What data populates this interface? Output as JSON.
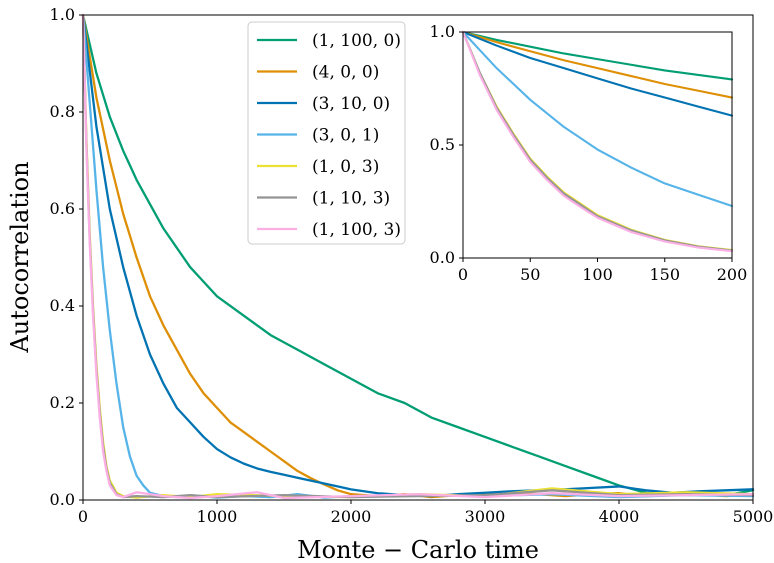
{
  "chart_data": [
    {
      "type": "line",
      "title": "",
      "xlabel": "Monte − Carlo time",
      "ylabel": "Autocorrelation",
      "xlim": [
        0,
        5000
      ],
      "ylim": [
        0,
        1.0
      ],
      "xticks": [
        0,
        1000,
        2000,
        3000,
        4000,
        5000
      ],
      "yticks": [
        0.0,
        0.2,
        0.4,
        0.6,
        0.8,
        1.0
      ],
      "xtick_labels": [
        "0",
        "1000",
        "2000",
        "3000",
        "4000",
        "5000"
      ],
      "ytick_labels": [
        "0.0",
        "0.2",
        "0.4",
        "0.6",
        "0.8",
        "1.0"
      ],
      "grid": false,
      "legend_position": "top-center",
      "series": [
        {
          "name": "(1, 100, 0)",
          "color": "#029e73",
          "x": [
            0,
            100,
            200,
            300,
            400,
            500,
            600,
            700,
            800,
            900,
            1000,
            1200,
            1400,
            1600,
            1800,
            2000,
            2200,
            2400,
            2600,
            2800,
            3000,
            3200,
            3400,
            3600,
            3800,
            4000,
            4200,
            4400,
            4600,
            4800,
            5000
          ],
          "y": [
            1.0,
            0.88,
            0.79,
            0.72,
            0.66,
            0.61,
            0.56,
            0.52,
            0.48,
            0.45,
            0.42,
            0.38,
            0.34,
            0.31,
            0.28,
            0.25,
            0.22,
            0.2,
            0.17,
            0.15,
            0.13,
            0.11,
            0.09,
            0.07,
            0.05,
            0.03,
            0.015,
            0.012,
            0.015,
            0.01,
            0.02
          ]
        },
        {
          "name": "(4, 0, 0)",
          "color": "#de8f05",
          "x": [
            0,
            100,
            200,
            300,
            400,
            500,
            600,
            700,
            800,
            900,
            1000,
            1100,
            1200,
            1300,
            1400,
            1500,
            1600,
            1700,
            1800,
            1900,
            2000,
            2200,
            2400,
            2600,
            2800,
            3000,
            3200,
            3400,
            3600,
            3800,
            4000,
            4200,
            4400,
            4600,
            4800,
            5000
          ],
          "y": [
            1.0,
            0.83,
            0.7,
            0.59,
            0.5,
            0.42,
            0.36,
            0.31,
            0.26,
            0.22,
            0.19,
            0.16,
            0.14,
            0.12,
            0.1,
            0.08,
            0.06,
            0.045,
            0.032,
            0.02,
            0.012,
            0.008,
            0.012,
            0.006,
            0.01,
            0.012,
            0.015,
            0.012,
            0.008,
            0.012,
            0.014,
            0.008,
            0.01,
            0.012,
            0.008,
            0.012
          ]
        },
        {
          "name": "(3, 10, 0)",
          "color": "#0173b2",
          "x": [
            0,
            100,
            200,
            300,
            400,
            500,
            600,
            700,
            800,
            900,
            1000,
            1100,
            1200,
            1300,
            1400,
            1500,
            1600,
            1700,
            1800,
            1900,
            2000,
            2200,
            2400,
            2600,
            2800,
            3000,
            3200,
            3400,
            3600,
            3800,
            4000,
            4200,
            4400,
            4600,
            4800,
            5000
          ],
          "y": [
            1.0,
            0.77,
            0.6,
            0.48,
            0.38,
            0.3,
            0.24,
            0.19,
            0.16,
            0.13,
            0.105,
            0.088,
            0.075,
            0.065,
            0.058,
            0.052,
            0.046,
            0.04,
            0.034,
            0.028,
            0.022,
            0.014,
            0.01,
            0.008,
            0.012,
            0.015,
            0.018,
            0.02,
            0.022,
            0.025,
            0.028,
            0.02,
            0.015,
            0.018,
            0.02,
            0.022
          ]
        },
        {
          "name": "(3, 0, 1)",
          "color": "#56b4e9",
          "x": [
            0,
            50,
            100,
            150,
            200,
            250,
            300,
            350,
            400,
            450,
            500,
            600,
            700,
            800,
            1000,
            1200,
            1400,
            1600,
            1800,
            2000,
            2500,
            3000,
            3500,
            4000,
            4500,
            5000
          ],
          "y": [
            1.0,
            0.82,
            0.64,
            0.48,
            0.35,
            0.24,
            0.15,
            0.09,
            0.05,
            0.03,
            0.015,
            0.008,
            0.006,
            0.01,
            0.005,
            0.008,
            0.006,
            0.012,
            0.005,
            0.008,
            0.01,
            0.008,
            0.012,
            0.006,
            0.01,
            0.008
          ]
        },
        {
          "name": "(1, 0, 3)",
          "color": "#ece133",
          "x": [
            0,
            25,
            50,
            75,
            100,
            125,
            150,
            175,
            200,
            250,
            300,
            400,
            600,
            800,
            1000,
            1500,
            2000,
            2500,
            3000,
            3500,
            4000,
            4500,
            5000
          ],
          "y": [
            1.0,
            0.75,
            0.55,
            0.4,
            0.28,
            0.19,
            0.12,
            0.07,
            0.04,
            0.015,
            0.008,
            0.005,
            0.01,
            0.006,
            0.012,
            0.008,
            0.006,
            0.012,
            0.008,
            0.024,
            0.012,
            0.016,
            0.012
          ]
        },
        {
          "name": "(1, 10, 3)",
          "color": "#949494",
          "x": [
            0,
            25,
            50,
            75,
            100,
            125,
            150,
            175,
            200,
            250,
            300,
            400,
            600,
            800,
            1000,
            1500,
            2000,
            2500,
            3000,
            3500,
            4000,
            4500,
            5000
          ],
          "y": [
            1.0,
            0.74,
            0.54,
            0.39,
            0.27,
            0.18,
            0.11,
            0.065,
            0.035,
            0.012,
            0.006,
            0.008,
            0.006,
            0.01,
            0.006,
            0.01,
            0.006,
            0.008,
            0.01,
            0.02,
            0.01,
            0.012,
            0.01
          ]
        },
        {
          "name": "(1, 100, 3)",
          "color": "#fbafe4",
          "x": [
            0,
            25,
            50,
            75,
            100,
            125,
            150,
            175,
            200,
            250,
            300,
            400,
            600,
            800,
            1000,
            1300,
            1500,
            2000,
            2500,
            3000,
            3500,
            4000,
            4500,
            5000
          ],
          "y": [
            1.0,
            0.73,
            0.53,
            0.38,
            0.26,
            0.17,
            0.1,
            0.06,
            0.03,
            0.01,
            0.006,
            0.016,
            0.008,
            0.004,
            0.008,
            0.016,
            0.004,
            0.008,
            0.012,
            0.006,
            0.014,
            0.008,
            0.01,
            0.012
          ]
        }
      ]
    },
    {
      "type": "line",
      "title": "",
      "xlabel": "",
      "ylabel": "",
      "xlim": [
        0,
        200
      ],
      "ylim": [
        0,
        1.0
      ],
      "xticks": [
        0,
        50,
        100,
        150,
        200
      ],
      "yticks": [
        0.0,
        0.5,
        1.0
      ],
      "xtick_labels": [
        "0",
        "50",
        "100",
        "150",
        "200"
      ],
      "ytick_labels": [
        "0.0",
        "0.5",
        "1.0"
      ],
      "grid": false,
      "legend_position": "none",
      "series": [
        {
          "color": "#029e73",
          "x": [
            0,
            25,
            50,
            75,
            100,
            125,
            150,
            175,
            200
          ],
          "y": [
            1.0,
            0.965,
            0.935,
            0.905,
            0.88,
            0.855,
            0.83,
            0.81,
            0.79
          ]
        },
        {
          "color": "#de8f05",
          "x": [
            0,
            25,
            50,
            75,
            100,
            125,
            150,
            175,
            200
          ],
          "y": [
            1.0,
            0.955,
            0.915,
            0.875,
            0.84,
            0.805,
            0.77,
            0.74,
            0.71
          ]
        },
        {
          "color": "#0173b2",
          "x": [
            0,
            25,
            50,
            75,
            100,
            125,
            150,
            175,
            200
          ],
          "y": [
            1.0,
            0.94,
            0.885,
            0.84,
            0.795,
            0.75,
            0.71,
            0.67,
            0.63
          ]
        },
        {
          "color": "#56b4e9",
          "x": [
            0,
            25,
            50,
            75,
            100,
            125,
            150,
            175,
            200
          ],
          "y": [
            1.0,
            0.84,
            0.7,
            0.58,
            0.48,
            0.4,
            0.33,
            0.28,
            0.23
          ]
        },
        {
          "color": "#ece133",
          "x": [
            0,
            12.5,
            25,
            37.5,
            50,
            62.5,
            75,
            87.5,
            100,
            125,
            150,
            175,
            200
          ],
          "y": [
            1.0,
            0.82,
            0.67,
            0.55,
            0.44,
            0.36,
            0.29,
            0.24,
            0.19,
            0.125,
            0.08,
            0.052,
            0.035
          ]
        },
        {
          "color": "#949494",
          "x": [
            0,
            12.5,
            25,
            37.5,
            50,
            62.5,
            75,
            87.5,
            100,
            125,
            150,
            175,
            200
          ],
          "y": [
            1.0,
            0.82,
            0.665,
            0.545,
            0.435,
            0.355,
            0.285,
            0.235,
            0.185,
            0.122,
            0.078,
            0.05,
            0.033
          ]
        },
        {
          "color": "#fbafe4",
          "x": [
            0,
            12.5,
            25,
            37.5,
            50,
            62.5,
            75,
            87.5,
            100,
            125,
            150,
            175,
            200
          ],
          "y": [
            1.0,
            0.81,
            0.655,
            0.535,
            0.425,
            0.345,
            0.275,
            0.225,
            0.178,
            0.115,
            0.073,
            0.046,
            0.03
          ]
        }
      ]
    }
  ]
}
